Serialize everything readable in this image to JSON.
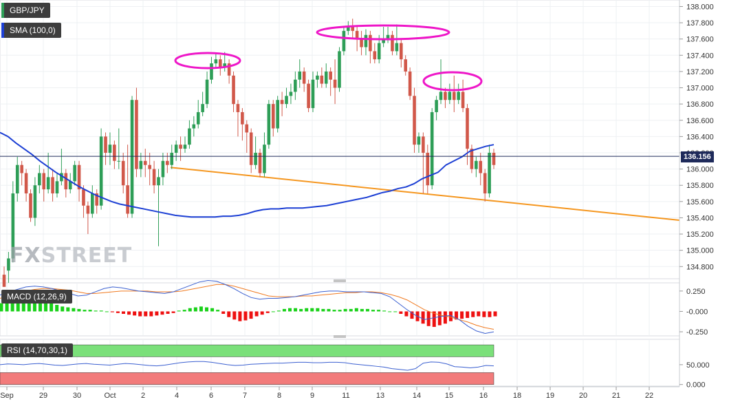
{
  "symbol": "GBP/JPY",
  "sma_label": "SMA (100,0)",
  "macd_label": "MACD (12,26,9)",
  "rsi_label": "RSI (14,70,30,1)",
  "last_price": "136.156",
  "watermark": {
    "fx": "FX",
    "rest": "STREET"
  },
  "colors": {
    "up": "#2e9e57",
    "down": "#d1584a",
    "sma": "#1c3fd4",
    "trend": "#f5961e",
    "circle": "#ee16c8",
    "macd_line": "#3a5fd0",
    "signal_line": "#f07a20",
    "rsi_over": "#7be07a",
    "rsi_under": "#f27b7b",
    "last_line": "#1e2a5a"
  },
  "chart_data": [
    {
      "type": "candlestick",
      "y_axis_ticks": [
        "138.000",
        "137.800",
        "137.600",
        "137.400",
        "137.200",
        "137.000",
        "136.800",
        "136.600",
        "136.400",
        "136.200",
        "136.000",
        "135.800",
        "135.600",
        "135.400",
        "135.200",
        "135.000",
        "134.800"
      ],
      "x_axis_ticks": [
        "Sep",
        "29",
        "30",
        "Oct",
        "2",
        "4",
        "6",
        "7",
        "8",
        "9",
        "11",
        "13",
        "14",
        "15",
        "16",
        "18",
        "19",
        "20",
        "21",
        "22"
      ],
      "ylim": [
        134.65,
        138.08
      ],
      "candles": [
        [
          134.7,
          134.55,
          134.8,
          134.55
        ],
        [
          134.75,
          134.9,
          134.98,
          134.6
        ],
        [
          134.9,
          135.7,
          135.85,
          134.85
        ],
        [
          135.7,
          136.05,
          136.15,
          135.6
        ],
        [
          136.05,
          135.95,
          136.1,
          135.8
        ],
        [
          135.95,
          135.7,
          136.0,
          135.6
        ],
        [
          135.7,
          135.4,
          135.75,
          135.35
        ],
        [
          135.4,
          135.8,
          135.9,
          135.3
        ],
        [
          135.8,
          135.95,
          136.05,
          135.7
        ],
        [
          135.95,
          135.75,
          136.0,
          135.6
        ],
        [
          135.75,
          135.9,
          136.2,
          135.7
        ],
        [
          135.9,
          135.7,
          136.0,
          135.6
        ],
        [
          135.7,
          135.85,
          135.95,
          135.65
        ],
        [
          135.85,
          135.95,
          136.25,
          135.8
        ],
        [
          135.95,
          135.75,
          136.0,
          135.65
        ],
        [
          135.75,
          135.85,
          135.95,
          135.7
        ],
        [
          135.85,
          136.05,
          136.1,
          135.8
        ],
        [
          136.05,
          135.75,
          136.1,
          135.6
        ],
        [
          135.75,
          135.55,
          135.8,
          135.4
        ],
        [
          135.55,
          135.45,
          135.6,
          135.2
        ],
        [
          135.45,
          135.7,
          135.8,
          135.4
        ],
        [
          135.7,
          135.55,
          135.75,
          135.45
        ],
        [
          135.55,
          136.4,
          136.5,
          135.5
        ],
        [
          136.4,
          136.2,
          136.45,
          136.05
        ],
        [
          136.2,
          136.3,
          136.45,
          136.05
        ],
        [
          136.3,
          136.1,
          136.35,
          136.0
        ],
        [
          136.1,
          136.1,
          136.5,
          136.0
        ],
        [
          136.1,
          135.8,
          136.2,
          135.7
        ],
        [
          135.8,
          135.45,
          136.3,
          135.4
        ],
        [
          135.45,
          136.85,
          136.9,
          135.4
        ],
        [
          136.85,
          136.0,
          137.0,
          135.9
        ],
        [
          136.0,
          136.1,
          136.2,
          135.9
        ],
        [
          136.1,
          136.05,
          136.25,
          135.9
        ],
        [
          136.05,
          136.0,
          136.2,
          135.8
        ],
        [
          136.0,
          135.8,
          136.1,
          135.7
        ],
        [
          135.8,
          135.9,
          136.0,
          135.05
        ],
        [
          135.9,
          136.1,
          136.2,
          135.8
        ],
        [
          136.1,
          136.05,
          136.2,
          135.95
        ],
        [
          136.05,
          136.2,
          136.3,
          136.0
        ],
        [
          136.2,
          136.3,
          136.35,
          136.1
        ],
        [
          136.3,
          136.25,
          136.4,
          136.1
        ],
        [
          136.25,
          136.3,
          136.4,
          136.2
        ],
        [
          136.3,
          136.5,
          136.6,
          136.25
        ],
        [
          136.5,
          136.55,
          136.65,
          136.4
        ],
        [
          136.55,
          136.7,
          136.85,
          136.5
        ],
        [
          136.7,
          136.8,
          136.95,
          136.65
        ],
        [
          136.8,
          137.1,
          137.2,
          136.75
        ],
        [
          137.1,
          137.3,
          137.38,
          137.05
        ],
        [
          137.3,
          137.35,
          137.42,
          137.25
        ],
        [
          137.35,
          137.25,
          137.4,
          137.15
        ],
        [
          137.25,
          137.3,
          137.44,
          137.2
        ],
        [
          137.3,
          137.15,
          137.35,
          137.05
        ],
        [
          137.15,
          136.8,
          137.2,
          136.7
        ],
        [
          136.8,
          136.7,
          136.85,
          136.4
        ],
        [
          136.7,
          136.55,
          136.75,
          136.35
        ],
        [
          136.55,
          136.45,
          136.6,
          136.2
        ],
        [
          136.45,
          136.05,
          136.5,
          135.95
        ],
        [
          136.05,
          136.2,
          136.4,
          136.0
        ],
        [
          136.2,
          135.95,
          136.25,
          135.9
        ],
        [
          135.95,
          136.3,
          136.45,
          135.9
        ],
        [
          136.3,
          136.8,
          136.85,
          136.25
        ],
        [
          136.8,
          136.5,
          136.85,
          136.4
        ],
        [
          136.5,
          136.85,
          136.9,
          136.45
        ],
        [
          136.85,
          136.8,
          136.95,
          136.65
        ],
        [
          136.8,
          136.9,
          137.0,
          136.75
        ],
        [
          136.9,
          136.95,
          137.05,
          136.8
        ],
        [
          136.95,
          137.1,
          137.2,
          136.85
        ],
        [
          137.1,
          137.2,
          137.35,
          137.0
        ],
        [
          137.2,
          137.05,
          137.25,
          136.95
        ],
        [
          137.05,
          136.75,
          137.1,
          136.7
        ],
        [
          136.75,
          137.1,
          137.2,
          136.7
        ],
        [
          137.1,
          137.15,
          137.2,
          137.0
        ],
        [
          137.15,
          137.05,
          137.25,
          137.0
        ],
        [
          137.05,
          137.2,
          137.3,
          137.0
        ],
        [
          137.2,
          137.1,
          137.25,
          136.9
        ],
        [
          137.1,
          137.0,
          137.35,
          136.8
        ],
        [
          137.0,
          137.45,
          137.5,
          136.95
        ],
        [
          137.45,
          137.7,
          137.75,
          137.4
        ],
        [
          137.7,
          137.75,
          137.82,
          137.65
        ],
        [
          137.75,
          137.7,
          137.85,
          137.6
        ],
        [
          137.7,
          137.6,
          137.75,
          137.45
        ],
        [
          137.6,
          137.5,
          137.7,
          137.4
        ],
        [
          137.5,
          137.65,
          137.72,
          137.4
        ],
        [
          137.65,
          137.45,
          137.7,
          137.3
        ],
        [
          137.45,
          137.35,
          137.55,
          137.3
        ],
        [
          137.35,
          137.55,
          137.65,
          137.3
        ],
        [
          137.55,
          137.6,
          137.75,
          137.5
        ],
        [
          137.6,
          137.65,
          137.75,
          137.55
        ],
        [
          137.65,
          137.45,
          137.7,
          137.4
        ],
        [
          137.45,
          137.55,
          137.78,
          137.4
        ],
        [
          137.55,
          137.35,
          137.6,
          137.25
        ],
        [
          137.35,
          137.2,
          137.4,
          137.15
        ],
        [
          137.2,
          136.9,
          137.25,
          136.85
        ],
        [
          136.9,
          136.3,
          137.0,
          136.2
        ],
        [
          136.3,
          136.4,
          136.45,
          136.2
        ],
        [
          136.4,
          136.2,
          136.45,
          135.7
        ],
        [
          136.2,
          135.8,
          136.3,
          135.7
        ],
        [
          135.8,
          136.7,
          136.75,
          135.75
        ],
        [
          136.7,
          136.85,
          136.9,
          136.6
        ],
        [
          136.85,
          136.95,
          137.35,
          136.8
        ],
        [
          136.95,
          136.85,
          137.0,
          136.75
        ],
        [
          136.85,
          136.95,
          137.05,
          136.8
        ],
        [
          136.95,
          136.85,
          137.15,
          136.7
        ],
        [
          136.85,
          136.95,
          137.05,
          136.8
        ],
        [
          136.95,
          136.75,
          137.1,
          136.7
        ],
        [
          136.75,
          136.25,
          136.8,
          136.05
        ],
        [
          136.25,
          136.0,
          136.3,
          135.95
        ],
        [
          136.0,
          136.1,
          136.15,
          135.9
        ],
        [
          136.1,
          135.95,
          136.2,
          135.8
        ],
        [
          135.95,
          135.7,
          136.0,
          135.6
        ],
        [
          135.7,
          136.2,
          136.3,
          135.65
        ],
        [
          136.2,
          136.05,
          136.25,
          136.0
        ]
      ],
      "series": [
        {
          "name": "SMA (100,0)",
          "values": [
            136.45,
            136.4,
            136.32,
            136.25,
            136.18,
            136.1,
            136.03,
            135.96,
            135.9,
            135.84,
            135.78,
            135.73,
            135.68,
            135.64,
            135.6,
            135.57,
            135.55,
            135.53,
            135.51,
            135.49,
            135.47,
            135.45,
            135.43,
            135.42,
            135.41,
            135.41,
            135.41,
            135.41,
            135.42,
            135.42,
            135.43,
            135.45,
            135.48,
            135.5,
            135.51,
            135.51,
            135.52,
            135.52,
            135.52,
            135.53,
            135.54,
            135.55,
            135.57,
            135.59,
            135.61,
            135.63,
            135.65,
            135.68,
            135.71,
            135.73,
            135.76,
            135.78,
            135.82,
            135.88,
            135.92,
            135.96,
            136.05,
            136.1,
            136.15,
            136.22,
            136.25,
            136.28,
            136.3
          ]
        }
      ],
      "trendline": {
        "from": [
          "Oct 4",
          136.02
        ],
        "to": [
          "Oct 22",
          135.37
        ]
      }
    },
    {
      "type": "bar",
      "name": "MACD (12,26,9)",
      "y_axis_ticks": [
        "0.250",
        "-0.000",
        "-0.250"
      ],
      "ylim": [
        -0.3,
        0.35
      ],
      "hist": [
        0.1,
        0.13,
        0.15,
        0.17,
        0.18,
        0.17,
        0.16,
        0.14,
        0.12,
        0.1,
        0.08,
        0.06,
        0.05,
        0.04,
        0.03,
        0.02,
        0.02,
        0.01,
        0.01,
        0.0,
        -0.01,
        -0.02,
        -0.03,
        -0.04,
        -0.05,
        -0.06,
        -0.06,
        -0.06,
        -0.05,
        -0.04,
        -0.03,
        -0.02,
        0.01,
        0.02,
        0.04,
        0.05,
        0.06,
        0.05,
        0.04,
        0.02,
        -0.03,
        -0.07,
        -0.1,
        -0.12,
        -0.11,
        -0.09,
        -0.06,
        -0.04,
        -0.02,
        0.0,
        0.01,
        0.03,
        0.04,
        0.04,
        0.03,
        0.04,
        0.04,
        0.04,
        0.03,
        0.03,
        0.02,
        0.02,
        0.03,
        0.03,
        0.04,
        0.03,
        0.03,
        0.02,
        0.02,
        0.01,
        0.0,
        0.0,
        -0.03,
        -0.06,
        -0.09,
        -0.12,
        -0.15,
        -0.18,
        -0.19,
        -0.17,
        -0.15,
        -0.12,
        -0.1,
        -0.09,
        -0.08,
        -0.07,
        -0.06,
        -0.07,
        -0.07,
        -0.06
      ],
      "macd": [
        0.2,
        0.24,
        0.27,
        0.3,
        0.31,
        0.3,
        0.28,
        0.25,
        0.22,
        0.19,
        0.2,
        0.24,
        0.28,
        0.3,
        0.29,
        0.27,
        0.25,
        0.24,
        0.23,
        0.22,
        0.24,
        0.28,
        0.32,
        0.36,
        0.38,
        0.37,
        0.33,
        0.28,
        0.22,
        0.17,
        0.15,
        0.16,
        0.16,
        0.17,
        0.18,
        0.2,
        0.22,
        0.24,
        0.25,
        0.25,
        0.24,
        0.24,
        0.24,
        0.23,
        0.22,
        0.18,
        0.1,
        0.02,
        -0.05,
        -0.1,
        -0.08,
        -0.06,
        -0.05,
        -0.1,
        -0.18,
        -0.24,
        -0.27,
        -0.25
      ],
      "signal": [
        0.16,
        0.19,
        0.22,
        0.25,
        0.27,
        0.28,
        0.28,
        0.27,
        0.26,
        0.24,
        0.22,
        0.22,
        0.23,
        0.24,
        0.25,
        0.25,
        0.25,
        0.25,
        0.24,
        0.24,
        0.24,
        0.25,
        0.27,
        0.29,
        0.31,
        0.33,
        0.33,
        0.31,
        0.28,
        0.25,
        0.22,
        0.19,
        0.18,
        0.18,
        0.18,
        0.19,
        0.19,
        0.2,
        0.21,
        0.22,
        0.23,
        0.23,
        0.24,
        0.24,
        0.23,
        0.21,
        0.18,
        0.14,
        0.08,
        0.02,
        -0.02,
        -0.05,
        -0.07,
        -0.1,
        -0.13,
        -0.17,
        -0.2,
        -0.22
      ]
    },
    {
      "type": "line",
      "name": "RSI (14,70,30,1)",
      "y_axis_ticks": [
        "50.000",
        "0.000"
      ],
      "ylim": [
        -4,
        114
      ],
      "overbought": 70,
      "oversold": 30,
      "values": [
        50,
        52,
        51,
        50,
        52,
        53,
        51,
        49,
        48,
        50,
        52,
        53,
        51,
        50,
        49,
        51,
        53,
        52,
        50,
        48,
        47,
        49,
        52,
        55,
        57,
        58,
        58,
        56,
        53,
        50,
        48,
        49,
        51,
        52,
        53,
        54,
        54,
        55,
        56,
        56,
        55,
        55,
        56,
        56,
        55,
        52,
        50,
        48,
        46,
        44,
        40,
        38,
        36,
        40,
        54,
        57,
        56,
        52,
        45,
        44,
        42,
        44,
        48,
        47
      ]
    }
  ]
}
